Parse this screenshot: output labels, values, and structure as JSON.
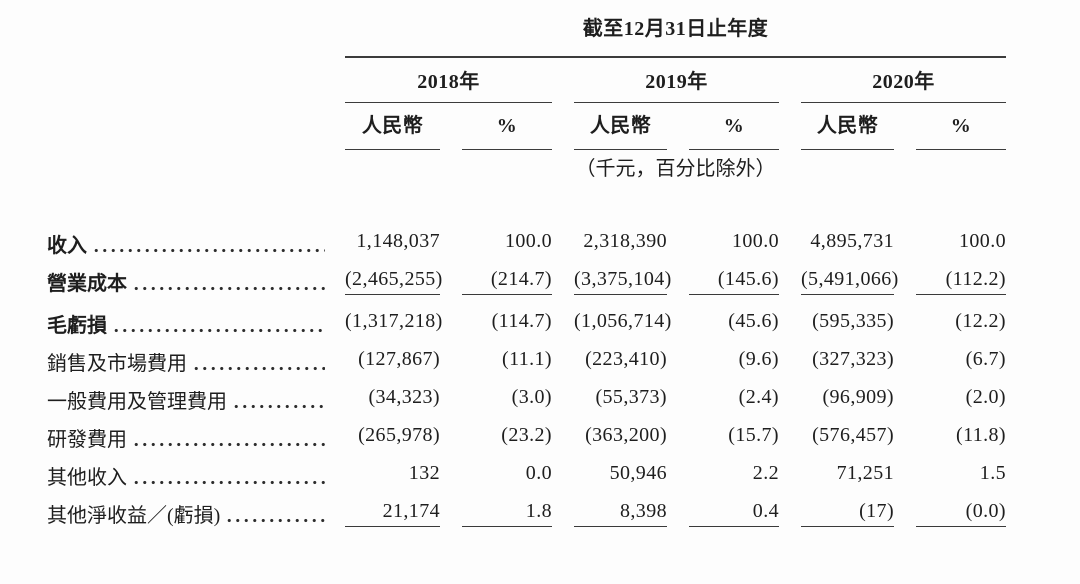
{
  "table": {
    "period_header": "截至12月31日止年度",
    "unit_note": "（千元，百分比除外）",
    "year_groups": [
      {
        "year": "2018年",
        "col_headers": [
          "人民幣",
          "%"
        ]
      },
      {
        "year": "2019年",
        "col_headers": [
          "人民幣",
          "%"
        ]
      },
      {
        "year": "2020年",
        "col_headers": [
          "人民幣",
          "%"
        ]
      }
    ],
    "rows": [
      {
        "label": "收入",
        "bold": true,
        "underline": false,
        "gap": false,
        "values": [
          "1,148,037",
          "100.0",
          "2,318,390",
          "100.0",
          "4,895,731",
          "100.0"
        ]
      },
      {
        "label": "營業成本",
        "bold": true,
        "underline": true,
        "gap": false,
        "values": [
          "(2,465,255)",
          "(214.7)",
          "(3,375,104)",
          "(145.6)",
          "(5,491,066)",
          "(112.2)"
        ]
      },
      {
        "label": "毛虧損",
        "bold": true,
        "underline": false,
        "gap": true,
        "values": [
          "(1,317,218)",
          "(114.7)",
          "(1,056,714)",
          "(45.6)",
          "(595,335)",
          "(12.2)"
        ]
      },
      {
        "label": "銷售及市場費用",
        "bold": false,
        "underline": false,
        "gap": false,
        "values": [
          "(127,867)",
          "(11.1)",
          "(223,410)",
          "(9.6)",
          "(327,323)",
          "(6.7)"
        ]
      },
      {
        "label": "一般費用及管理費用",
        "bold": false,
        "underline": false,
        "gap": false,
        "values": [
          "(34,323)",
          "(3.0)",
          "(55,373)",
          "(2.4)",
          "(96,909)",
          "(2.0)"
        ]
      },
      {
        "label": "研發費用",
        "bold": false,
        "underline": false,
        "gap": false,
        "values": [
          "(265,978)",
          "(23.2)",
          "(363,200)",
          "(15.7)",
          "(576,457)",
          "(11.8)"
        ]
      },
      {
        "label": "其他收入",
        "bold": false,
        "underline": false,
        "gap": false,
        "values": [
          "132",
          "0.0",
          "50,946",
          "2.2",
          "71,251",
          "1.5"
        ]
      },
      {
        "label": "其他淨收益／(虧損)",
        "bold": false,
        "underline": true,
        "gap": false,
        "values": [
          "21,174",
          "1.8",
          "8,398",
          "0.4",
          "(17)",
          "(0.0)"
        ]
      }
    ]
  }
}
